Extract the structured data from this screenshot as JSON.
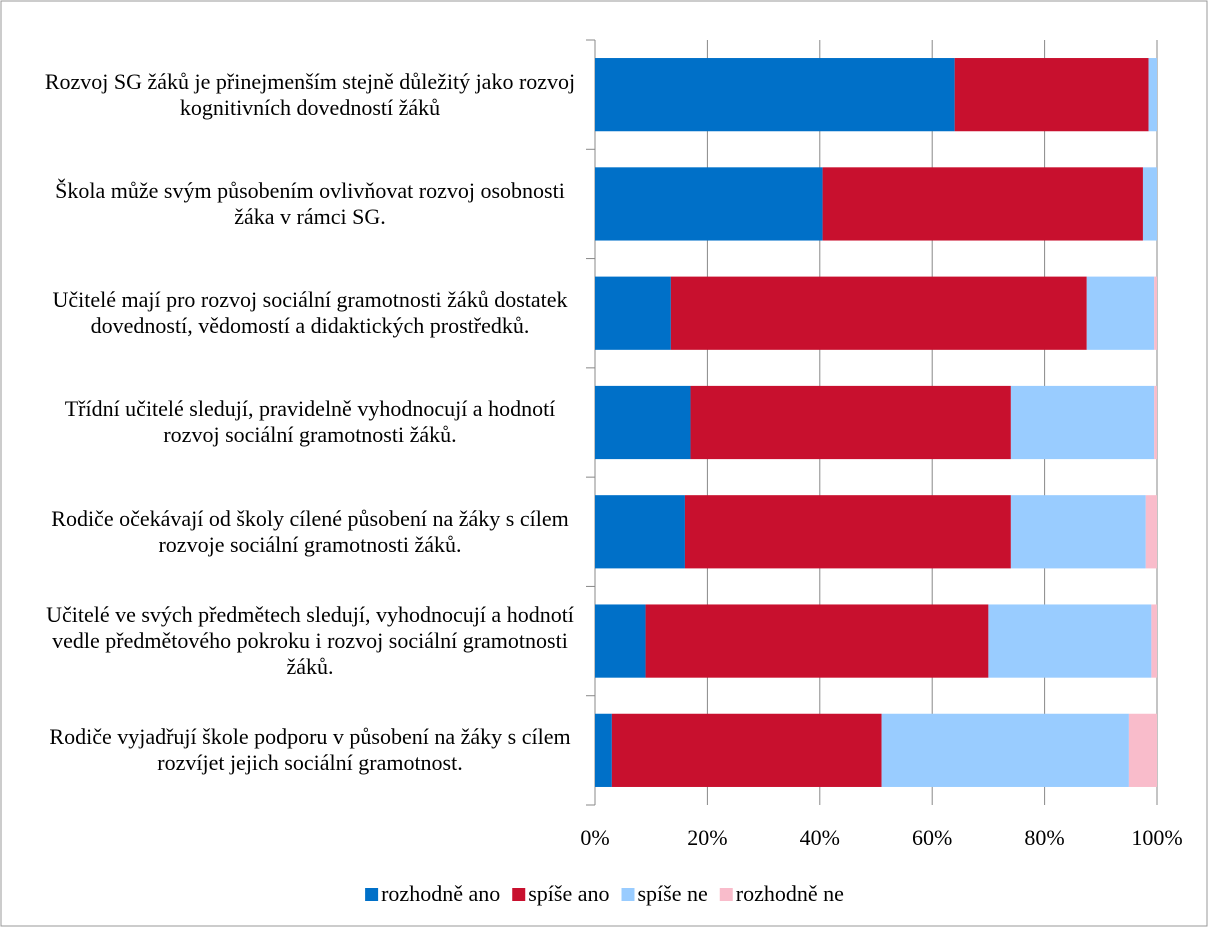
{
  "chart_data": {
    "type": "stacked-bar-horizontal",
    "categories": [
      "Rozvoj SG žáků je přinejmenším stejně důležitý jako rozvoj kognitivních dovedností žáků",
      "Škola může svým působením ovlivňovat rozvoj osobnosti žáka v rámci SG.",
      "Učitelé mají pro rozvoj sociální gramotnosti žáků dostatek dovedností, vědomostí a didaktických prostředků.",
      "Třídní učitelé sledují, pravidelně vyhodnocují a hodnotí rozvoj sociální gramotnosti žáků.",
      "Rodiče očekávají od školy cílené působení na žáky s cílem rozvoje sociální gramotnosti žáků.",
      "Učitelé ve svých předmětech sledují, vyhodnocují a hodnotí vedle předmětového pokroku i rozvoj sociální gramotnosti žáků.",
      "Rodiče vyjadřují škole podporu v působení na žáky s cílem rozvíjet jejich sociální gramotnost."
    ],
    "series": [
      {
        "name": "rozhodně ano",
        "color": "#0070c8",
        "values": [
          64,
          40.5,
          13.5,
          17,
          16,
          9,
          3
        ]
      },
      {
        "name": "spíše ano",
        "color": "#c8102e",
        "values": [
          34.5,
          57,
          74,
          57,
          58,
          61,
          48
        ]
      },
      {
        "name": "spíše ne",
        "color": "#99ccff",
        "values": [
          1.5,
          2.5,
          12,
          25.5,
          24,
          29,
          44
        ]
      },
      {
        "name": "rozhodně ne",
        "color": "#f9bccb",
        "values": [
          0,
          0,
          0.5,
          0.5,
          2,
          1,
          5
        ]
      }
    ],
    "xlim": [
      0,
      100
    ],
    "xticks": [
      {
        "value": 0,
        "label": "0%"
      },
      {
        "value": 20,
        "label": "20%"
      },
      {
        "value": 40,
        "label": "40%"
      },
      {
        "value": 60,
        "label": "60%"
      },
      {
        "value": 80,
        "label": "80%"
      },
      {
        "value": 100,
        "label": "100%"
      }
    ],
    "grid": true,
    "legend": "bottom"
  }
}
